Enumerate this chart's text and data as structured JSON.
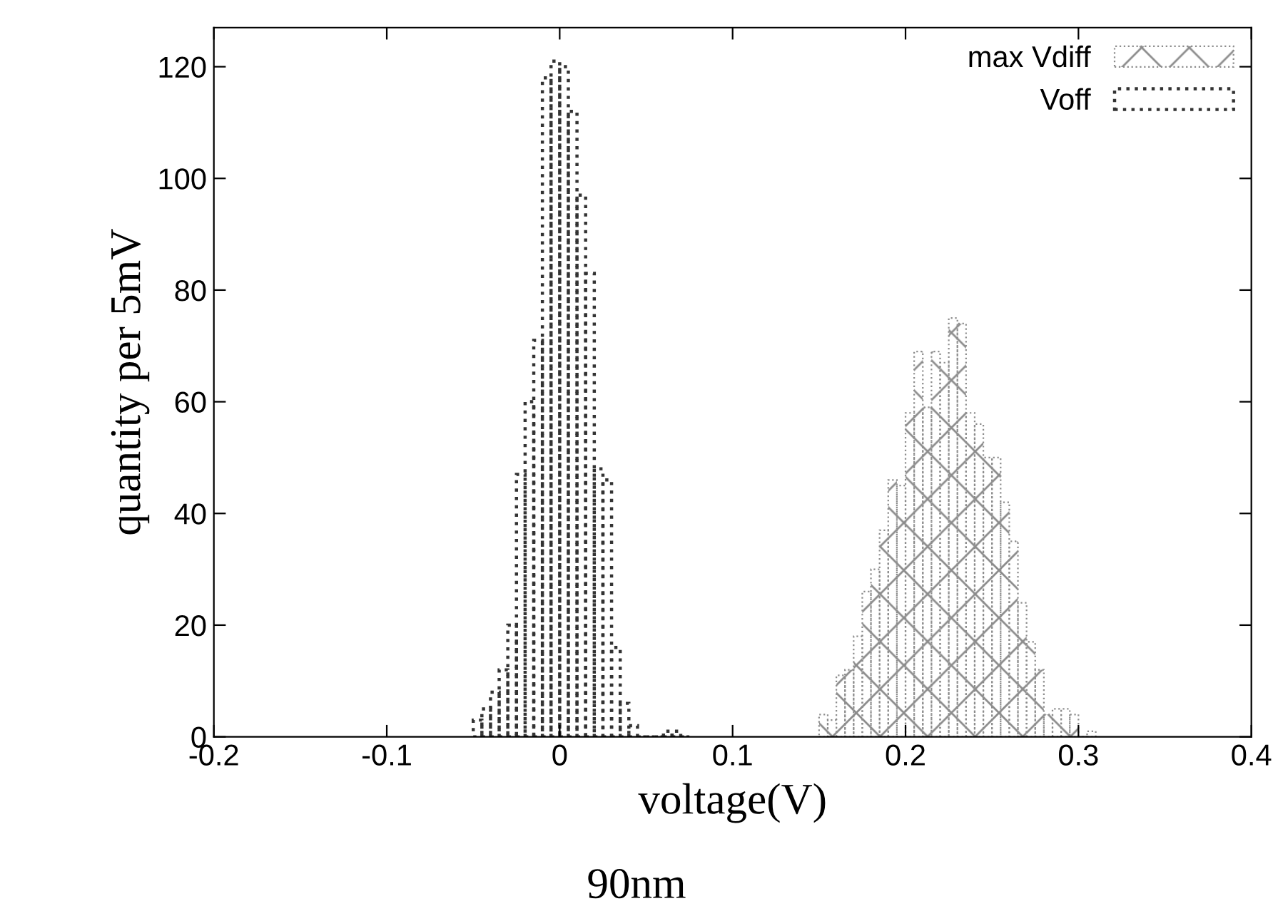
{
  "chart_data": {
    "type": "bar",
    "xlabel": "voltage(V)",
    "ylabel": "quantity per 5mV",
    "annotations": [
      "90nm"
    ],
    "xlim": [
      -0.2,
      0.4
    ],
    "xticks": [
      -0.2,
      -0.1,
      0,
      0.1,
      0.2,
      0.3,
      0.4
    ],
    "ylim": [
      0,
      127
    ],
    "yticks": [
      0,
      20,
      40,
      60,
      80,
      100,
      120
    ],
    "legend": "top right",
    "series": [
      {
        "name": "max Vdiff",
        "color": "#8c8c8c",
        "line_style": "dotted",
        "x": [
          0.1525,
          0.1575,
          0.1625,
          0.1675,
          0.1725,
          0.1775,
          0.1825,
          0.1875,
          0.1925,
          0.1975,
          0.2025,
          0.2075,
          0.2125,
          0.2175,
          0.2225,
          0.2275,
          0.2325,
          0.2375,
          0.2425,
          0.2475,
          0.2525,
          0.2575,
          0.2625,
          0.2675,
          0.2725,
          0.2775,
          0.2825,
          0.2875,
          0.2925,
          0.2975,
          0.3025,
          0.3075
        ],
        "values": [
          4,
          3,
          11,
          12,
          18,
          26,
          30,
          37,
          46,
          45,
          58,
          69,
          59,
          69,
          67,
          75,
          74,
          58,
          56,
          50,
          50,
          42,
          35,
          24,
          17,
          12,
          4,
          5,
          5,
          4,
          0,
          1
        ]
      },
      {
        "name": "Voff",
        "color": "#333333",
        "line_style": "dotted",
        "x": [
          -0.0475,
          -0.0425,
          -0.0375,
          -0.0325,
          -0.0275,
          -0.0225,
          -0.0175,
          -0.0125,
          -0.0075,
          -0.0025,
          0.0025,
          0.0075,
          0.0125,
          0.0175,
          0.0225,
          0.0275,
          0.0325,
          0.0375,
          0.0425,
          0.0475,
          0.0525,
          0.0575,
          0.0625,
          0.0675,
          0.0725
        ],
        "values": [
          3,
          5,
          8,
          12,
          20,
          47,
          60,
          71,
          118,
          121,
          120,
          112,
          97,
          83,
          48,
          46,
          16,
          6,
          2,
          0,
          0,
          0,
          1,
          1,
          0
        ]
      }
    ]
  }
}
